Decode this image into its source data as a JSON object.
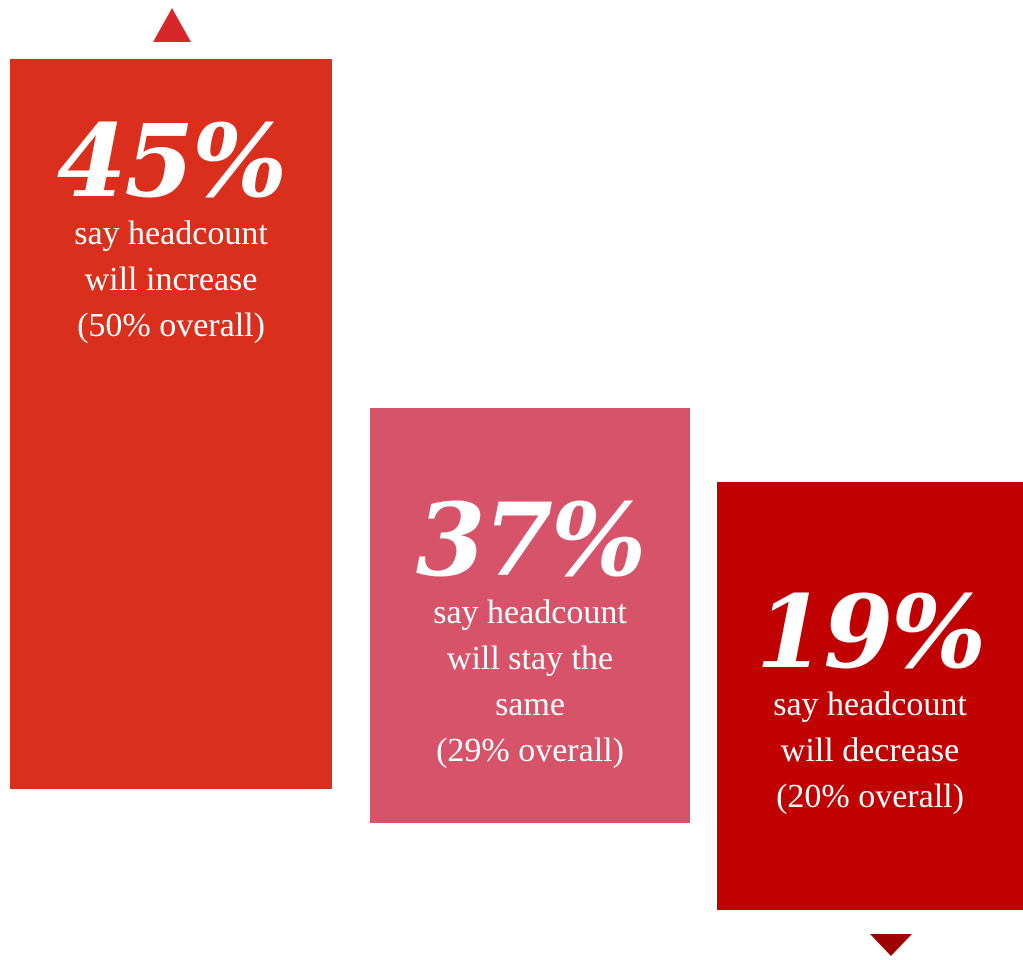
{
  "chart_data": {
    "type": "bar",
    "categories": [
      "increase",
      "stay the same",
      "decrease"
    ],
    "values": [
      45,
      37,
      19
    ],
    "value_labels": [
      "45%",
      "37%",
      "19%"
    ],
    "descriptions": [
      [
        "say headcount",
        "will increase",
        "(50% overall)"
      ],
      [
        "say headcount",
        "will stay the",
        "same",
        "(29% overall)"
      ],
      [
        "say headcount",
        "will decrease",
        "(20% overall)"
      ]
    ],
    "overall_values": [
      50,
      29,
      20
    ],
    "colors": [
      "#db2f1e",
      "#d7536a",
      "#c10001"
    ],
    "title": "",
    "xlabel": "",
    "ylabel": ""
  }
}
